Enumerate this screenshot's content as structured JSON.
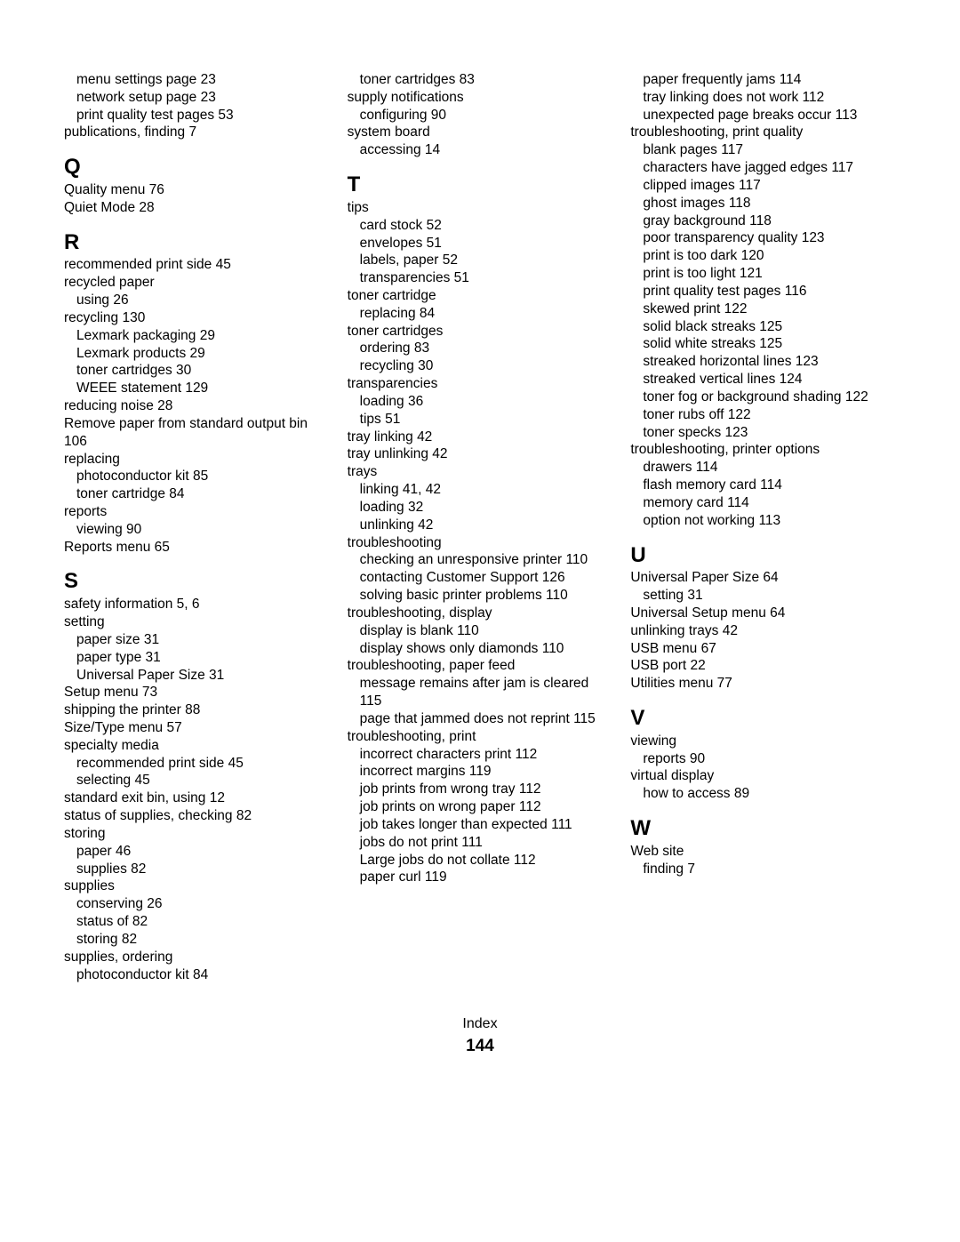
{
  "footer": {
    "label": "Index",
    "page": "144"
  },
  "columns": [
    {
      "items": [
        {
          "type": "entry",
          "level": 1,
          "text": "menu settings page  23"
        },
        {
          "type": "entry",
          "level": 1,
          "text": "network setup page  23"
        },
        {
          "type": "entry",
          "level": 1,
          "text": "print quality test pages  53"
        },
        {
          "type": "entry",
          "level": 0,
          "text": "publications, finding  7"
        },
        {
          "type": "letter",
          "text": "Q"
        },
        {
          "type": "entry",
          "level": 0,
          "text": "Quality menu  76"
        },
        {
          "type": "entry",
          "level": 0,
          "text": "Quiet Mode  28"
        },
        {
          "type": "letter",
          "text": "R"
        },
        {
          "type": "entry",
          "level": 0,
          "text": "recommended print side  45"
        },
        {
          "type": "entry",
          "level": 0,
          "text": "recycled paper"
        },
        {
          "type": "entry",
          "level": 1,
          "text": "using  26"
        },
        {
          "type": "entry",
          "level": 0,
          "text": "recycling  130"
        },
        {
          "type": "entry",
          "level": 1,
          "text": "Lexmark packaging  29"
        },
        {
          "type": "entry",
          "level": 1,
          "text": "Lexmark products  29"
        },
        {
          "type": "entry",
          "level": 1,
          "text": "toner cartridges  30"
        },
        {
          "type": "entry",
          "level": 1,
          "text": "WEEE statement  129"
        },
        {
          "type": "entry",
          "level": 0,
          "text": "reducing noise  28"
        },
        {
          "type": "entry",
          "level": 0,
          "text": "Remove paper from standard output bin  106"
        },
        {
          "type": "entry",
          "level": 0,
          "text": "replacing"
        },
        {
          "type": "entry",
          "level": 1,
          "text": "photoconductor kit  85"
        },
        {
          "type": "entry",
          "level": 1,
          "text": "toner cartridge  84"
        },
        {
          "type": "entry",
          "level": 0,
          "text": "reports"
        },
        {
          "type": "entry",
          "level": 1,
          "text": "viewing  90"
        },
        {
          "type": "entry",
          "level": 0,
          "text": "Reports menu  65"
        },
        {
          "type": "letter",
          "text": "S"
        },
        {
          "type": "entry",
          "level": 0,
          "text": "safety information  5, 6"
        },
        {
          "type": "entry",
          "level": 0,
          "text": "setting"
        },
        {
          "type": "entry",
          "level": 1,
          "text": "paper size  31"
        },
        {
          "type": "entry",
          "level": 1,
          "text": "paper type  31"
        },
        {
          "type": "entry",
          "level": 1,
          "text": "Universal Paper Size  31"
        },
        {
          "type": "entry",
          "level": 0,
          "text": "Setup menu  73"
        },
        {
          "type": "entry",
          "level": 0,
          "text": "shipping the printer  88"
        },
        {
          "type": "entry",
          "level": 0,
          "text": "Size/Type menu  57"
        },
        {
          "type": "entry",
          "level": 0,
          "text": "specialty media"
        },
        {
          "type": "entry",
          "level": 1,
          "text": "recommended print side  45"
        },
        {
          "type": "entry",
          "level": 1,
          "text": "selecting  45"
        },
        {
          "type": "entry",
          "level": 0,
          "text": "standard exit bin, using  12"
        },
        {
          "type": "entry",
          "level": 0,
          "text": "status of supplies, checking  82"
        },
        {
          "type": "entry",
          "level": 0,
          "text": "storing"
        },
        {
          "type": "entry",
          "level": 1,
          "text": "paper  46"
        },
        {
          "type": "entry",
          "level": 1,
          "text": "supplies  82"
        },
        {
          "type": "entry",
          "level": 0,
          "text": "supplies"
        },
        {
          "type": "entry",
          "level": 1,
          "text": "conserving  26"
        },
        {
          "type": "entry",
          "level": 1,
          "text": "status of  82"
        },
        {
          "type": "entry",
          "level": 1,
          "text": "storing  82"
        },
        {
          "type": "entry",
          "level": 0,
          "text": "supplies, ordering"
        },
        {
          "type": "entry",
          "level": 1,
          "text": "photoconductor kit  84"
        }
      ]
    },
    {
      "items": [
        {
          "type": "entry",
          "level": 1,
          "text": "toner cartridges  83"
        },
        {
          "type": "entry",
          "level": 0,
          "text": "supply notifications"
        },
        {
          "type": "entry",
          "level": 1,
          "text": "configuring  90"
        },
        {
          "type": "entry",
          "level": 0,
          "text": "system board"
        },
        {
          "type": "entry",
          "level": 1,
          "text": "accessing  14"
        },
        {
          "type": "letter",
          "text": "T"
        },
        {
          "type": "entry",
          "level": 0,
          "text": "tips"
        },
        {
          "type": "entry",
          "level": 1,
          "text": "card stock  52"
        },
        {
          "type": "entry",
          "level": 1,
          "text": "envelopes  51"
        },
        {
          "type": "entry",
          "level": 1,
          "text": "labels, paper  52"
        },
        {
          "type": "entry",
          "level": 1,
          "text": "transparencies  51"
        },
        {
          "type": "entry",
          "level": 0,
          "text": "toner cartridge"
        },
        {
          "type": "entry",
          "level": 1,
          "text": "replacing  84"
        },
        {
          "type": "entry",
          "level": 0,
          "text": "toner cartridges"
        },
        {
          "type": "entry",
          "level": 1,
          "text": "ordering  83"
        },
        {
          "type": "entry",
          "level": 1,
          "text": "recycling  30"
        },
        {
          "type": "entry",
          "level": 0,
          "text": "transparencies"
        },
        {
          "type": "entry",
          "level": 1,
          "text": "loading  36"
        },
        {
          "type": "entry",
          "level": 1,
          "text": "tips  51"
        },
        {
          "type": "entry",
          "level": 0,
          "text": "tray linking  42"
        },
        {
          "type": "entry",
          "level": 0,
          "text": "tray unlinking  42"
        },
        {
          "type": "entry",
          "level": 0,
          "text": "trays"
        },
        {
          "type": "entry",
          "level": 1,
          "text": "linking  41, 42"
        },
        {
          "type": "entry",
          "level": 1,
          "text": "loading  32"
        },
        {
          "type": "entry",
          "level": 1,
          "text": "unlinking  42"
        },
        {
          "type": "entry",
          "level": 0,
          "text": "troubleshooting"
        },
        {
          "type": "entry",
          "level": 1,
          "text": "checking an unresponsive printer  110"
        },
        {
          "type": "entry",
          "level": 1,
          "text": "contacting Customer Support  126"
        },
        {
          "type": "entry",
          "level": 1,
          "text": "solving basic printer problems  110"
        },
        {
          "type": "entry",
          "level": 0,
          "text": "troubleshooting, display"
        },
        {
          "type": "entry",
          "level": 1,
          "text": "display is blank  110"
        },
        {
          "type": "entry",
          "level": 1,
          "text": "display shows only diamonds  110"
        },
        {
          "type": "entry",
          "level": 0,
          "text": "troubleshooting, paper feed"
        },
        {
          "type": "entry",
          "level": 1,
          "text": "message remains after jam is cleared  115"
        },
        {
          "type": "entry",
          "level": 1,
          "text": "page that jammed does not reprint  115"
        },
        {
          "type": "entry",
          "level": 0,
          "text": "troubleshooting, print"
        },
        {
          "type": "entry",
          "level": 1,
          "text": "incorrect characters print  112"
        },
        {
          "type": "entry",
          "level": 1,
          "text": "incorrect margins  119"
        },
        {
          "type": "entry",
          "level": 1,
          "text": "job prints from wrong tray  112"
        },
        {
          "type": "entry",
          "level": 1,
          "text": "job prints on wrong paper  112"
        },
        {
          "type": "entry",
          "level": 1,
          "text": "job takes longer than expected  111"
        },
        {
          "type": "entry",
          "level": 1,
          "text": "jobs do not print  111"
        },
        {
          "type": "entry",
          "level": 1,
          "text": "Large jobs do not collate  112"
        },
        {
          "type": "entry",
          "level": 1,
          "text": "paper curl  119"
        }
      ]
    },
    {
      "items": [
        {
          "type": "entry",
          "level": 1,
          "text": "paper frequently jams  114"
        },
        {
          "type": "entry",
          "level": 1,
          "text": "tray linking does not work  112"
        },
        {
          "type": "entry",
          "level": 1,
          "text": "unexpected page breaks occur  113"
        },
        {
          "type": "entry",
          "level": 0,
          "text": "troubleshooting, print quality"
        },
        {
          "type": "entry",
          "level": 1,
          "text": "blank pages  117"
        },
        {
          "type": "entry",
          "level": 1,
          "text": "characters have jagged edges  117"
        },
        {
          "type": "entry",
          "level": 1,
          "text": "clipped images  117"
        },
        {
          "type": "entry",
          "level": 1,
          "text": "ghost images  118"
        },
        {
          "type": "entry",
          "level": 1,
          "text": "gray background  118"
        },
        {
          "type": "entry",
          "level": 1,
          "text": "poor transparency quality  123"
        },
        {
          "type": "entry",
          "level": 1,
          "text": "print is too dark  120"
        },
        {
          "type": "entry",
          "level": 1,
          "text": "print is too light  121"
        },
        {
          "type": "entry",
          "level": 1,
          "text": "print quality test pages  116"
        },
        {
          "type": "entry",
          "level": 1,
          "text": "skewed print  122"
        },
        {
          "type": "entry",
          "level": 1,
          "text": "solid black streaks  125"
        },
        {
          "type": "entry",
          "level": 1,
          "text": "solid white streaks  125"
        },
        {
          "type": "entry",
          "level": 1,
          "text": "streaked horizontal lines  123"
        },
        {
          "type": "entry",
          "level": 1,
          "text": "streaked vertical lines  124"
        },
        {
          "type": "entry",
          "level": 1,
          "text": "toner fog or background shading  122"
        },
        {
          "type": "entry",
          "level": 1,
          "text": "toner rubs off  122"
        },
        {
          "type": "entry",
          "level": 1,
          "text": "toner specks  123"
        },
        {
          "type": "entry",
          "level": 0,
          "text": "troubleshooting, printer options"
        },
        {
          "type": "entry",
          "level": 1,
          "text": "drawers  114"
        },
        {
          "type": "entry",
          "level": 1,
          "text": "flash memory card  114"
        },
        {
          "type": "entry",
          "level": 1,
          "text": "memory card  114"
        },
        {
          "type": "entry",
          "level": 1,
          "text": "option not working  113"
        },
        {
          "type": "letter",
          "text": "U"
        },
        {
          "type": "entry",
          "level": 0,
          "text": "Universal Paper Size  64"
        },
        {
          "type": "entry",
          "level": 1,
          "text": "setting  31"
        },
        {
          "type": "entry",
          "level": 0,
          "text": "Universal Setup menu  64"
        },
        {
          "type": "entry",
          "level": 0,
          "text": "unlinking trays  42"
        },
        {
          "type": "entry",
          "level": 0,
          "text": "USB menu  67"
        },
        {
          "type": "entry",
          "level": 0,
          "text": "USB port  22"
        },
        {
          "type": "entry",
          "level": 0,
          "text": "Utilities menu  77"
        },
        {
          "type": "letter",
          "text": "V"
        },
        {
          "type": "entry",
          "level": 0,
          "text": "viewing"
        },
        {
          "type": "entry",
          "level": 1,
          "text": "reports  90"
        },
        {
          "type": "entry",
          "level": 0,
          "text": "virtual display"
        },
        {
          "type": "entry",
          "level": 1,
          "text": "how to access  89"
        },
        {
          "type": "letter",
          "text": "W"
        },
        {
          "type": "entry",
          "level": 0,
          "text": "Web site"
        },
        {
          "type": "entry",
          "level": 1,
          "text": "finding  7"
        }
      ]
    }
  ]
}
